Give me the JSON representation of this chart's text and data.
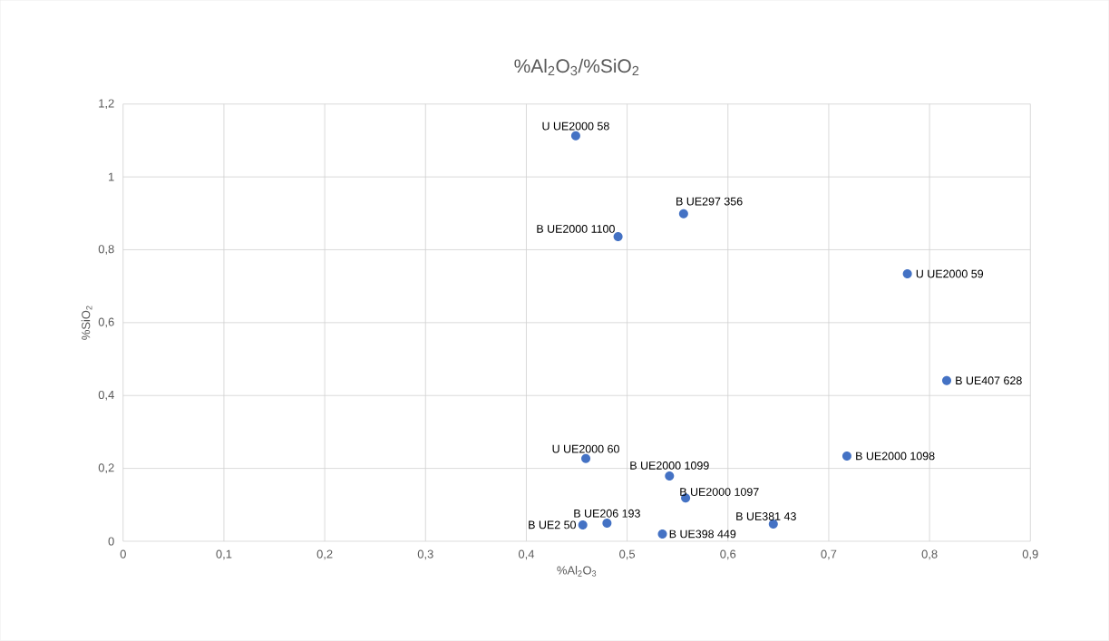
{
  "chart_data": {
    "type": "scatter",
    "title": "%Al$_{2}$O$_{3}$/%SiO$_{2}$",
    "xlabel": "%Al$_{2}$O$_{3}$",
    "ylabel": "%SiO$_{2}$",
    "x": [
      0.449,
      0.556,
      0.491,
      0.778,
      0.817,
      0.459,
      0.718,
      0.542,
      0.558,
      0.645,
      0.48,
      0.456,
      0.535
    ],
    "values": [
      1.113,
      0.899,
      0.836,
      0.734,
      0.441,
      0.227,
      0.234,
      0.179,
      0.119,
      0.047,
      0.05,
      0.045,
      0.02
    ],
    "color": "#4472c4",
    "marker": "circle",
    "grid": true,
    "xlim": [
      0,
      0.9
    ],
    "ylim": [
      0,
      1.2
    ],
    "xticks": [
      0,
      {
        "value": 0.1,
        "label": "0,1"
      },
      {
        "value": 0.2,
        "label": "0,2"
      },
      {
        "value": 0.3,
        "label": "0,3"
      },
      {
        "value": 0.4,
        "label": "0,4"
      },
      {
        "value": 0.5,
        "label": "0,5"
      },
      {
        "value": 0.6,
        "label": "0,6"
      },
      {
        "value": 0.7,
        "label": "0,7"
      },
      {
        "value": 0.8,
        "label": "0,8"
      },
      {
        "value": 0.9,
        "label": "0,9"
      }
    ],
    "yticks": [
      0,
      {
        "value": 0.2,
        "label": "0,2"
      },
      {
        "value": 0.4,
        "label": "0,4"
      },
      {
        "value": 0.6,
        "label": "0,6"
      },
      {
        "value": 0.8,
        "label": "0,8"
      },
      1,
      {
        "value": 1.2,
        "label": "1,2"
      }
    ],
    "annotations": [
      {
        "text": "U UE2000 58",
        "x": 0.449,
        "y": 1.113
      },
      {
        "text": "B UE297 356",
        "x": 0.556,
        "y": 0.899
      },
      {
        "text": "B UE2000 1100",
        "x": 0.491,
        "y": 0.836
      },
      {
        "text": "U UE2000 59",
        "x": 0.778,
        "y": 0.734
      },
      {
        "text": "B UE407 628",
        "x": 0.817,
        "y": 0.441
      },
      {
        "text": "U UE2000 60",
        "x": 0.459,
        "y": 0.227
      },
      {
        "text": "B UE2000 1098",
        "x": 0.718,
        "y": 0.234
      },
      {
        "text": "B UE2000 1099",
        "x": 0.542,
        "y": 0.179
      },
      {
        "text": "B UE2000 1097",
        "x": 0.558,
        "y": 0.119
      },
      {
        "text": "B UE381 43",
        "x": 0.645,
        "y": 0.047
      },
      {
        "text": "B UE206 193",
        "x": 0.48,
        "y": 0.05
      },
      {
        "text": "B UE2 50",
        "x": 0.456,
        "y": 0.045
      },
      {
        "text": "B UE398 449",
        "x": 0.535,
        "y": 0.02
      }
    ]
  }
}
